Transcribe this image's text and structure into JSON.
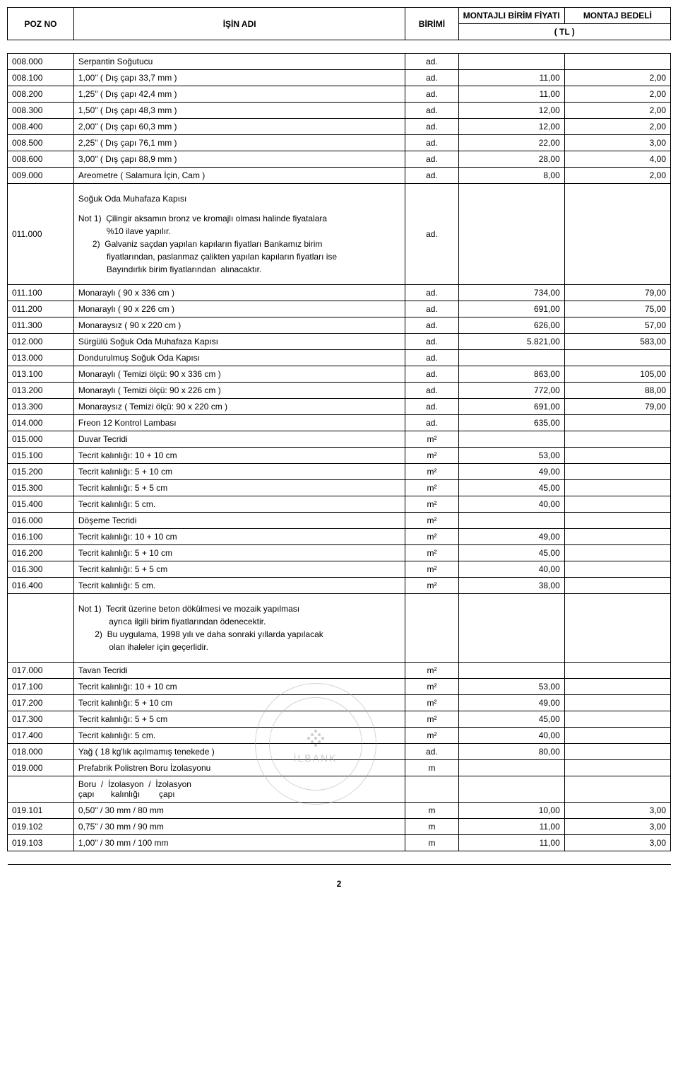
{
  "header": {
    "poz": "POZ NO",
    "isin": "İŞİN  ADI",
    "birimi": "BİRİMİ",
    "fiyat": "MONTAJLI BİRİM FİYATI",
    "bedel": "MONTAJ BEDELİ",
    "currency": "( TL )"
  },
  "rows": [
    {
      "poz": "008.000",
      "isin": "Serpantin Soğutucu",
      "birimi": "ad.",
      "fiyat": "",
      "bedel": ""
    },
    {
      "poz": "008.100",
      "isin": "1,00\"    ( Dış çapı  33,7 mm )",
      "birimi": "ad.",
      "fiyat": "11,00",
      "bedel": "2,00"
    },
    {
      "poz": "008.200",
      "isin": "1,25\"    ( Dış çapı  42,4 mm )",
      "birimi": "ad.",
      "fiyat": "11,00",
      "bedel": "2,00"
    },
    {
      "poz": "008.300",
      "isin": "1,50\"    ( Dış çapı  48,3 mm )",
      "birimi": "ad.",
      "fiyat": "12,00",
      "bedel": "2,00"
    },
    {
      "poz": "008.400",
      "isin": "2,00\"    ( Dış çapı  60,3 mm )",
      "birimi": "ad.",
      "fiyat": "12,00",
      "bedel": "2,00"
    },
    {
      "poz": "008.500",
      "isin": "2,25\"    ( Dış çapı  76,1 mm )",
      "birimi": "ad.",
      "fiyat": "22,00",
      "bedel": "3,00"
    },
    {
      "poz": "008.600",
      "isin": "3,00\"    ( Dış çapı  88,9 mm )",
      "birimi": "ad.",
      "fiyat": "28,00",
      "bedel": "4,00"
    },
    {
      "poz": "009.000",
      "isin": "Areometre    ( Salamura İçin,  Cam )",
      "birimi": "ad.",
      "fiyat": "8,00",
      "bedel": "2,00"
    }
  ],
  "note1": {
    "poz": "011.000",
    "title": "Soğuk Oda Muhafaza Kapısı",
    "text": "Not 1)  Çilingir aksamın bronz ve kromajlı olması halinde fiyatalara\n            %10 ilave yapılır.\n      2)  Galvaniz saçdan yapılan kapıların fiyatları Bankamız birim\n            fiyatlarından, paslanmaz çalikten yapılan kapıların fiyatları ise\n            Bayındırlık birim fiyatlarından  alınacaktır.",
    "birimi": "ad."
  },
  "rows2": [
    {
      "poz": "011.100",
      "isin": "Monaraylı      ( 90 x 336 cm )",
      "birimi": "ad.",
      "fiyat": "734,00",
      "bedel": "79,00"
    },
    {
      "poz": "011.200",
      "isin": "Monaraylı      ( 90 x 226 cm )",
      "birimi": "ad.",
      "fiyat": "691,00",
      "bedel": "75,00"
    },
    {
      "poz": "011.300",
      "isin": "Monaraysız   ( 90 x 220 cm )",
      "birimi": "ad.",
      "fiyat": "626,00",
      "bedel": "57,00"
    },
    {
      "poz": "012.000",
      "isin": "Sürgülü Soğuk Oda Muhafaza Kapısı",
      "birimi": "ad.",
      "fiyat": "5.821,00",
      "bedel": "583,00"
    },
    {
      "poz": "013.000",
      "isin": "Dondurulmuş Soğuk Oda Kapısı",
      "birimi": "ad.",
      "fiyat": "",
      "bedel": ""
    },
    {
      "poz": "013.100",
      "isin": "Monaraylı       ( Temizi ölçü:  90 x 336 cm )",
      "birimi": "ad.",
      "fiyat": "863,00",
      "bedel": "105,00"
    },
    {
      "poz": "013.200",
      "isin": "Monaraylı       ( Temizi ölçü:  90 x 226 cm )",
      "birimi": "ad.",
      "fiyat": "772,00",
      "bedel": "88,00"
    },
    {
      "poz": "013.300",
      "isin": "Monaraysız    ( Temizi ölçü:  90 x 220 cm )",
      "birimi": "ad.",
      "fiyat": "691,00",
      "bedel": "79,00"
    },
    {
      "poz": "014.000",
      "isin": "Freon 12 Kontrol Lambası",
      "birimi": "ad.",
      "fiyat": "635,00",
      "bedel": ""
    },
    {
      "poz": "015.000",
      "isin": "Duvar Tecridi",
      "birimi": "m²",
      "fiyat": "",
      "bedel": ""
    },
    {
      "poz": "015.100",
      "isin": "Tecrit kalınlığı:    10 + 10 cm",
      "birimi": "m²",
      "fiyat": "53,00",
      "bedel": ""
    },
    {
      "poz": "015.200",
      "isin": "Tecrit kalınlığı:    5 + 10 cm",
      "birimi": "m²",
      "fiyat": "49,00",
      "bedel": ""
    },
    {
      "poz": "015.300",
      "isin": "Tecrit kalınlığı:    5 + 5 cm",
      "birimi": "m²",
      "fiyat": "45,00",
      "bedel": ""
    },
    {
      "poz": "015.400",
      "isin": "Tecrit kalınlığı:    5 cm.",
      "birimi": "m²",
      "fiyat": "40,00",
      "bedel": ""
    },
    {
      "poz": "016.000",
      "isin": "Döşeme Tecridi",
      "birimi": "m²",
      "fiyat": "",
      "bedel": ""
    },
    {
      "poz": "016.100",
      "isin": "Tecrit kalınlığı:    10 + 10 cm",
      "birimi": "m²",
      "fiyat": "49,00",
      "bedel": ""
    },
    {
      "poz": "016.200",
      "isin": "Tecrit kalınlığı:    5 + 10 cm",
      "birimi": "m²",
      "fiyat": "45,00",
      "bedel": ""
    },
    {
      "poz": "016.300",
      "isin": "Tecrit kalınlığı:    5 + 5 cm",
      "birimi": "m²",
      "fiyat": "40,00",
      "bedel": ""
    },
    {
      "poz": "016.400",
      "isin": "Tecrit kalınlığı:    5 cm.",
      "birimi": "m²",
      "fiyat": "38,00",
      "bedel": ""
    }
  ],
  "note2": {
    "text": "Not 1)  Tecrit üzerine beton dökülmesi ve mozaik yapılması\n             ayrıca ilgili birim fiyatlarından ödenecektir.\n       2)  Bu uygulama, 1998 yılı ve daha sonraki yıllarda yapılacak\n             olan ihaleler için geçerlidir."
  },
  "rows3": [
    {
      "poz": "017.000",
      "isin": "Tavan Tecridi",
      "birimi": "m²",
      "fiyat": "",
      "bedel": ""
    },
    {
      "poz": "017.100",
      "isin": "Tecrit kalınlığı:    10 + 10 cm",
      "birimi": "m²",
      "fiyat": "53,00",
      "bedel": ""
    },
    {
      "poz": "017.200",
      "isin": "Tecrit kalınlığı:    5 + 10 cm",
      "birimi": "m²",
      "fiyat": "49,00",
      "bedel": ""
    },
    {
      "poz": "017.300",
      "isin": "Tecrit kalınlığı:    5 + 5 cm",
      "birimi": "m²",
      "fiyat": "45,00",
      "bedel": ""
    },
    {
      "poz": "017.400",
      "isin": "Tecrit kalınlığı:    5 cm.",
      "birimi": "m²",
      "fiyat": "40,00",
      "bedel": ""
    },
    {
      "poz": "018.000",
      "isin": "Yağ  ( 18 kg'lık açılmamış tenekede )",
      "birimi": "ad.",
      "fiyat": "80,00",
      "bedel": ""
    },
    {
      "poz": "019.000",
      "isin": "Prefabrik Polistren Boru İzolasyonu",
      "birimi": "m",
      "fiyat": "",
      "bedel": ""
    }
  ],
  "subheader": {
    "text": "Boru  /  İzolasyon  /  İzolasyon\nçapı       kalınlığı        çapı"
  },
  "rows4": [
    {
      "poz": "019.101",
      "isin": "0,50\"  /  30 mm  /    80 mm",
      "birimi": "m",
      "fiyat": "10,00",
      "bedel": "3,00"
    },
    {
      "poz": "019.102",
      "isin": "0,75\"  /  30 mm  /    90 mm",
      "birimi": "m",
      "fiyat": "11,00",
      "bedel": "3,00"
    },
    {
      "poz": "019.103",
      "isin": "1,00\"  /  30 mm  /  100 mm",
      "birimi": "m",
      "fiyat": "11,00",
      "bedel": "3,00"
    }
  ],
  "stamp": "İLBANK",
  "pageNumber": "2"
}
